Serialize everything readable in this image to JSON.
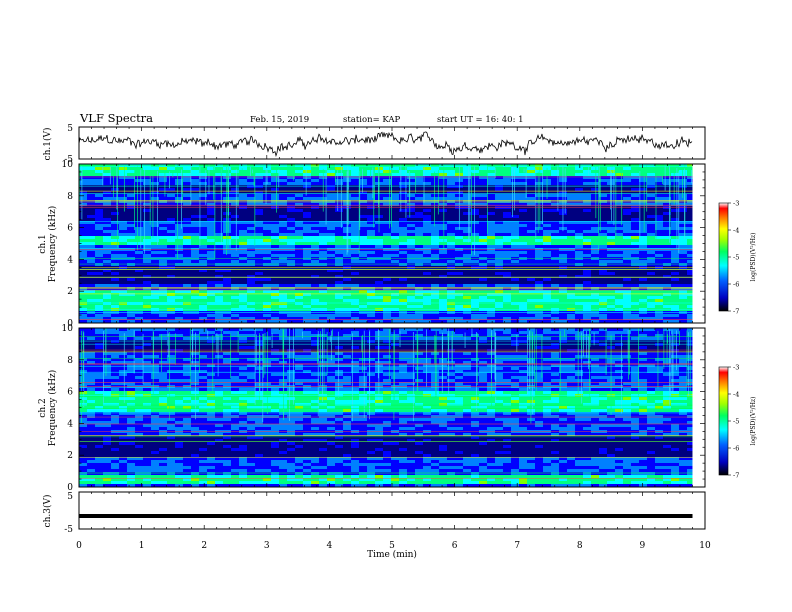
{
  "header": {
    "title": "VLF Spectra",
    "date": "Feb. 15, 2019",
    "station": "station= KAP",
    "start_ut": "start  UT =   16: 40: 1"
  },
  "chart_data": {
    "type": "heatmap",
    "x_axis": {
      "label": "Time  (min)",
      "range": [
        0,
        10
      ],
      "ticks": [
        "0",
        "1",
        "2",
        "3",
        "4",
        "5",
        "6",
        "7",
        "8",
        "9",
        "10"
      ],
      "data_end": 9.8
    },
    "panels": [
      {
        "name": "ch.1(V)",
        "kind": "waveform",
        "ylabel": "ch.1(V)",
        "yrange": [
          -5,
          5
        ],
        "ticks": [
          "5",
          "-5"
        ],
        "color": "#000000"
      },
      {
        "name": "ch.1 spectrogram",
        "kind": "spectrogram",
        "ylabel_line1": "ch.1",
        "ylabel_line2": "Frequency (kHz)",
        "yrange": [
          0,
          10
        ],
        "ticks": [
          "0",
          "2",
          "4",
          "6",
          "8",
          "10"
        ],
        "dark_bands_khz": [
          [
            2.6,
            3.6
          ],
          [
            6.6,
            7.4
          ],
          [
            8.3,
            8.8
          ]
        ],
        "bright_bands_khz": [
          [
            0.9,
            2.2
          ],
          [
            5.0,
            5.6
          ],
          [
            9.4,
            10.0
          ]
        ],
        "colorbar": {
          "label": "log(PSD)(V²/Hz)",
          "range": [
            -7,
            -3
          ],
          "ticks": [
            "-3",
            "-4",
            "-5",
            "-6",
            "-7"
          ]
        }
      },
      {
        "name": "ch.2 spectrogram",
        "kind": "spectrogram",
        "ylabel_line1": "ch.2",
        "ylabel_line2": "Frequency (kHz)",
        "yrange": [
          0,
          10
        ],
        "ticks": [
          "0",
          "2",
          "4",
          "6",
          "8",
          "10"
        ],
        "dark_bands_khz": [
          [
            1.9,
            3.3
          ],
          [
            8.6,
            9.4
          ]
        ],
        "bright_bands_khz": [
          [
            4.9,
            6.1
          ],
          [
            0.2,
            0.9
          ]
        ],
        "colorbar": {
          "label": "log(PSD)(V²/Hz)",
          "range": [
            -7,
            -3
          ],
          "ticks": [
            "-3",
            "-4",
            "-5",
            "-6",
            "-7"
          ]
        }
      },
      {
        "name": "ch.3(V)",
        "kind": "waveform",
        "ylabel": "ch.3(V)",
        "yrange": [
          -5,
          5
        ],
        "ticks": [
          "5",
          "-5"
        ],
        "flat_value": -1.5,
        "color": "#000000"
      }
    ],
    "colormap": [
      "#000080",
      "#0000ff",
      "#0080ff",
      "#00ffff",
      "#00ff80",
      "#80ff00",
      "#ffff00",
      "#ff8000",
      "#ff0000",
      "#ffffff"
    ]
  }
}
